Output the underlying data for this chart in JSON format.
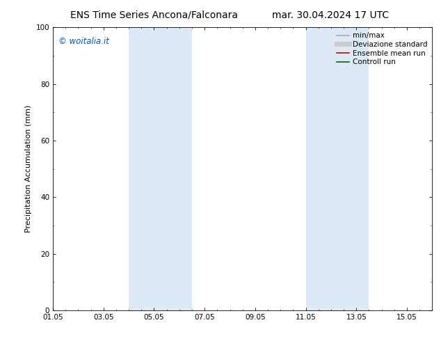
{
  "title_left": "ENS Time Series Ancona/Falconara",
  "title_right": "mar. 30.04.2024 17 UTC",
  "ylabel": "Precipitation Accumulation (mm)",
  "ylim": [
    0,
    100
  ],
  "yticks": [
    0,
    20,
    40,
    60,
    80,
    100
  ],
  "xtick_labels": [
    "01.05",
    "03.05",
    "05.05",
    "07.05",
    "09.05",
    "11.05",
    "13.05",
    "15.05"
  ],
  "xtick_positions": [
    0,
    2,
    4,
    6,
    8,
    10,
    12,
    14
  ],
  "xlim": [
    0,
    15
  ],
  "shaded_bands": [
    {
      "x_start": 3.0,
      "x_end": 3.85,
      "color": "#ddeaf5"
    },
    {
      "x_start": 3.85,
      "x_end": 5.5,
      "color": "#ddeaf5"
    },
    {
      "x_start": 10.0,
      "x_end": 10.85,
      "color": "#ddeaf5"
    },
    {
      "x_start": 10.85,
      "x_end": 12.5,
      "color": "#ddeaf5"
    }
  ],
  "background_color": "#ffffff",
  "plot_bg_color": "#ffffff",
  "watermark_text": "© woitalia.it",
  "watermark_color": "#0055cc",
  "legend_entries": [
    {
      "label": "min/max",
      "color": "#aaaaaa",
      "linewidth": 1.2,
      "linestyle": "-"
    },
    {
      "label": "Deviazione standard",
      "color": "#cccccc",
      "linewidth": 5,
      "linestyle": "-"
    },
    {
      "label": "Ensemble mean run",
      "color": "#cc0000",
      "linewidth": 1.2,
      "linestyle": "-"
    },
    {
      "label": "Controll run",
      "color": "#006600",
      "linewidth": 1.2,
      "linestyle": "-"
    }
  ],
  "title_fontsize": 10,
  "axis_label_fontsize": 8,
  "tick_fontsize": 7.5,
  "legend_fontsize": 7.5,
  "watermark_fontsize": 8.5
}
